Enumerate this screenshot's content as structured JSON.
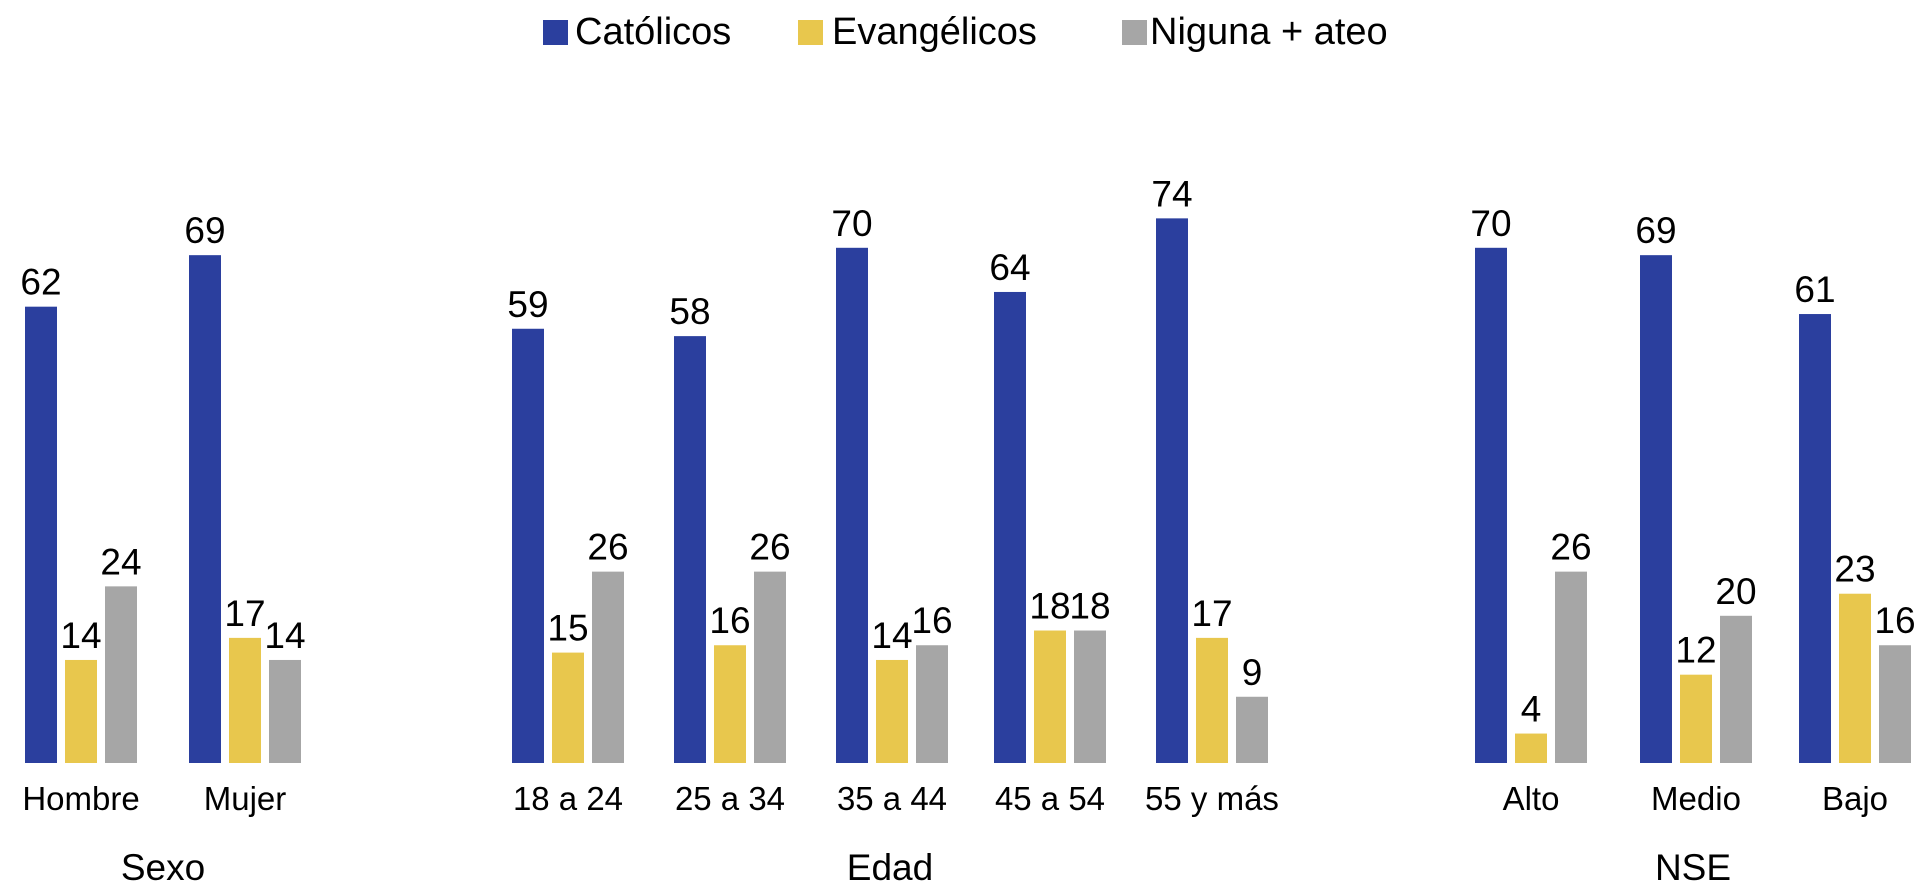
{
  "chart_data": {
    "type": "bar",
    "groups": [
      {
        "name": "Sexo",
        "categories": [
          "Hombre",
          "Mujer"
        ]
      },
      {
        "name": "Edad",
        "categories": [
          "18 a 24",
          "25 a 34",
          "35 a 44",
          "45 a 54",
          "55 y más"
        ]
      },
      {
        "name": "NSE",
        "categories": [
          "Alto",
          "Medio",
          "Bajo"
        ]
      }
    ],
    "series": [
      {
        "name": "Católicos",
        "color": "#2b3f9e",
        "values": [
          [
            62,
            69
          ],
          [
            59,
            58,
            70,
            64,
            74
          ],
          [
            70,
            69,
            61
          ]
        ]
      },
      {
        "name": "Evangélicos",
        "color": "#e8c74d",
        "values": [
          [
            14,
            17
          ],
          [
            15,
            16,
            14,
            18,
            17
          ],
          [
            4,
            12,
            23
          ]
        ]
      },
      {
        "name": "Niguna + ateo",
        "color": "#a6a6a6",
        "values": [
          [
            24,
            14
          ],
          [
            26,
            26,
            16,
            18,
            9
          ],
          [
            26,
            20,
            16
          ]
        ]
      }
    ],
    "legend": "top"
  }
}
